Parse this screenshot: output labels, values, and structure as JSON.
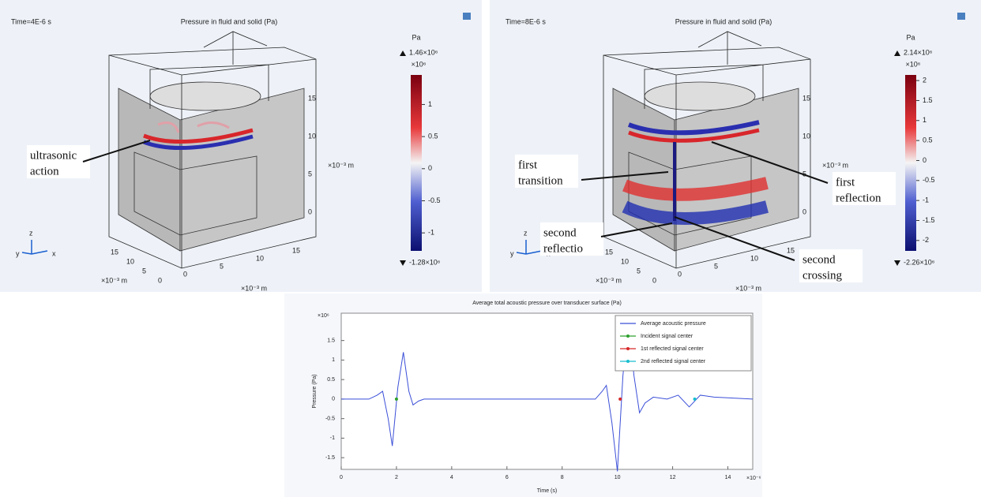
{
  "panels": [
    {
      "time": "Time=4E-6 s",
      "title": "Pressure in fluid and solid (Pa)",
      "colorbar": {
        "unit": "Pa",
        "max_label": "1.46×10⁶",
        "multiplier": "×10⁶",
        "lim": [
          -1.28,
          1.46
        ],
        "ticks": [
          1,
          0.5,
          0,
          -0.5,
          -1
        ],
        "min_label": "-1.28×10⁶"
      },
      "z_ticks": [
        "15",
        "10",
        "5",
        "0"
      ],
      "z_unit": "×10⁻³ m",
      "y_ticks": [
        "15",
        "10",
        "5",
        "0"
      ],
      "y_unit": "×10⁻³ m",
      "x_ticks": [
        "0",
        "5",
        "10",
        "15"
      ],
      "x_unit": "×10⁻³ m",
      "triad": [
        "z",
        "y",
        "x"
      ],
      "annotations": [
        [
          "ultrasonic",
          "action"
        ]
      ]
    },
    {
      "time": "Time=8E-6 s",
      "title": "Pressure in fluid and solid (Pa)",
      "colorbar": {
        "unit": "Pa",
        "max_label": "2.14×10⁶",
        "multiplier": "×10⁶",
        "lim": [
          -2.26,
          2.14
        ],
        "ticks": [
          2,
          1.5,
          1,
          0.5,
          0,
          -0.5,
          -1,
          -1.5,
          -2
        ],
        "min_label": "-2.26×10⁶"
      },
      "z_ticks": [
        "15",
        "10",
        "5",
        "0"
      ],
      "z_unit": "×10⁻³ m",
      "y_ticks": [
        "15",
        "10",
        "5",
        "0"
      ],
      "y_unit": "×10⁻³ m",
      "x_ticks": [
        "0",
        "5",
        "10",
        "15"
      ],
      "x_unit": "×10⁻³ m",
      "triad": [
        "z",
        "y",
        "x"
      ],
      "annotations": [
        [
          "first",
          "transition"
        ],
        [
          "first",
          "reflection"
        ],
        [
          "second",
          "reflectio"
        ],
        [
          "second",
          "crossing"
        ]
      ]
    }
  ],
  "chart_data": {
    "type": "line",
    "title": "Average total acoustic pressure over transducer surface (Pa)",
    "x_label": "Time (s)",
    "y_label": "Pressure (Pa)",
    "x_multiplier": "×10⁻⁶",
    "y_multiplier": "×10⁶",
    "xlim": [
      0,
      14.9
    ],
    "ylim": [
      -1.8,
      2.2
    ],
    "xticks": [
      0,
      2,
      4,
      6,
      8,
      10,
      12,
      14
    ],
    "yticks": [
      -1.5,
      -1,
      -0.5,
      0,
      0.5,
      1,
      1.5
    ],
    "legend": "upper right",
    "series": [
      {
        "name": "Average acoustic pressure",
        "color": "#3b4fd8",
        "x": [
          0,
          1.0,
          1.3,
          1.5,
          1.7,
          1.85,
          2.05,
          2.25,
          2.45,
          2.6,
          2.8,
          3.0,
          9.2,
          9.45,
          9.6,
          9.8,
          10.0,
          10.2,
          10.4,
          10.6,
          10.8,
          11.0,
          11.3,
          11.8,
          12.2,
          12.6,
          13.0,
          13.5,
          14.9
        ],
        "values": [
          0,
          0,
          0.1,
          0.2,
          -0.5,
          -1.2,
          0.3,
          1.2,
          0.2,
          -0.15,
          -0.05,
          0,
          0,
          0.2,
          0.35,
          -0.6,
          -1.85,
          0.6,
          2.0,
          0.6,
          -0.35,
          -0.1,
          0.05,
          0,
          0.1,
          -0.2,
          0.1,
          0.05,
          0
        ]
      },
      {
        "name": "Incident signal center",
        "color": "#2ca02c",
        "x": [
          2.0
        ],
        "values": [
          0
        ]
      },
      {
        "name": "1st reflected signal center",
        "color": "#d62728",
        "x": [
          10.1
        ],
        "values": [
          0
        ]
      },
      {
        "name": "2nd reflected signal center",
        "color": "#17becf",
        "x": [
          12.8
        ],
        "values": [
          0
        ]
      }
    ]
  }
}
